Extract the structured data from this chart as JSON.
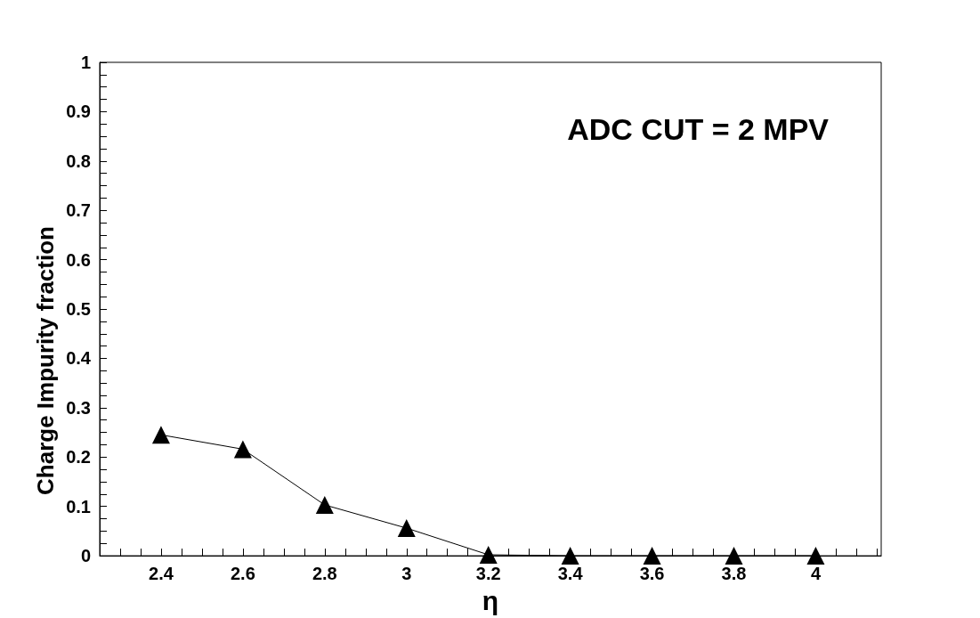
{
  "chart_data": {
    "type": "line",
    "xlabel": "η",
    "ylabel": "Charge Impurity fraction",
    "annotations": [
      "ADC CUT = 2 MPV"
    ],
    "x": [
      2.4,
      2.6,
      2.8,
      3.0,
      3.2,
      3.4,
      3.6,
      3.8,
      4.0
    ],
    "series": [
      {
        "color": "#000000",
        "values": [
          0.245,
          0.216,
          0.103,
          0.056,
          0.002,
          0,
          0,
          0,
          0
        ]
      }
    ],
    "xlim": [
      2.25,
      4.16
    ],
    "xticks": [
      2.4,
      2.6,
      2.8,
      3,
      3.2,
      3.4,
      3.6,
      3.8,
      4
    ],
    "ylim": [
      0,
      1
    ],
    "yticks": [
      0,
      0.1,
      0.2,
      0.3,
      0.4,
      0.5,
      0.6,
      0.7,
      0.8,
      0.9,
      1
    ],
    "marker": "triangle",
    "line_style": "solid",
    "grid": false
  }
}
